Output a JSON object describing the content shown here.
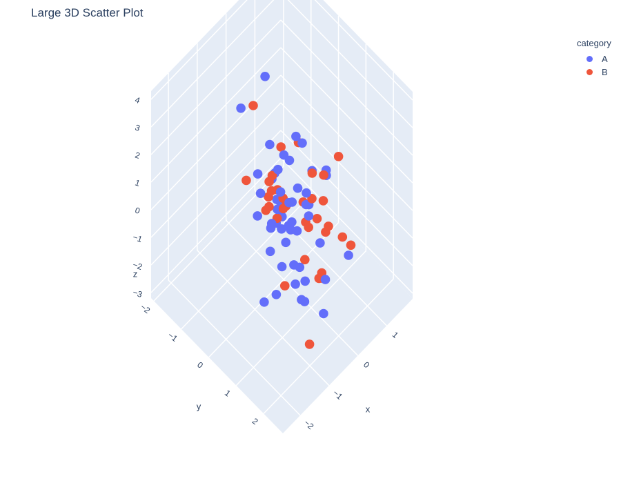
{
  "chart_data": {
    "type": "scatter",
    "subtype": "3d",
    "title": "Large 3D Scatter Plot",
    "xlabel": "x",
    "ylabel": "y",
    "zlabel": "z",
    "x_ticks": [
      "−2",
      "−1",
      "0",
      "1"
    ],
    "y_ticks": [
      "−2",
      "−1",
      "0",
      "1",
      "2"
    ],
    "z_ticks": [
      "−3",
      "−2",
      "−1",
      "0",
      "1",
      "2",
      "3",
      "4"
    ],
    "xlim": [
      -2.6,
      1.9
    ],
    "ylim": [
      -2.1,
      2.7
    ],
    "zlim": [
      -3.2,
      4.3
    ],
    "grid": true,
    "legend": {
      "title": "category",
      "placement": "top-right"
    },
    "series": [
      {
        "name": "A",
        "color": "#636efa",
        "points": [
          [
            -1.2,
            -0.3,
            4.0
          ],
          [
            0.4,
            -1.1,
            2.6
          ],
          [
            -1.8,
            1.4,
            1.2
          ],
          [
            -2.2,
            1.6,
            0.0
          ],
          [
            -1.6,
            1.6,
            2.0
          ],
          [
            -0.9,
            0.0,
            1.6
          ],
          [
            -1.2,
            1.2,
            1.6
          ],
          [
            -1.5,
            1.3,
            1.8
          ],
          [
            -1.0,
            0.8,
            1.6
          ],
          [
            -1.4,
            1.0,
            1.2
          ],
          [
            -0.6,
            0.2,
            1.3
          ],
          [
            -0.2,
            -0.3,
            1.6
          ],
          [
            -0.5,
            0.2,
            1.4
          ],
          [
            0.2,
            0.0,
            0.9
          ],
          [
            -0.9,
            0.1,
            1.0
          ],
          [
            -0.3,
            0.2,
            0.5
          ],
          [
            -0.6,
            0.4,
            0.4
          ],
          [
            -1.3,
            1.3,
            0.0
          ],
          [
            -0.9,
            1.2,
            0.8
          ],
          [
            -1.1,
            0.2,
            0.5
          ],
          [
            -0.4,
            0.6,
            -0.2
          ],
          [
            -0.1,
            0.3,
            0.0
          ],
          [
            0.2,
            0.3,
            0.2
          ],
          [
            0.3,
            0.6,
            -0.2
          ],
          [
            0.3,
            0.5,
            -0.3
          ],
          [
            -0.3,
            0.8,
            -0.3
          ],
          [
            -1.1,
            1.8,
            -0.9
          ],
          [
            -1.5,
            2.0,
            0.3
          ],
          [
            -0.6,
            1.0,
            -1.0
          ],
          [
            -1.4,
            1.2,
            -1.0
          ],
          [
            -0.5,
            0.6,
            -0.7
          ],
          [
            0.5,
            0.3,
            -0.3
          ],
          [
            0.9,
            0.6,
            0.4
          ],
          [
            1.0,
            0.5,
            0.0
          ],
          [
            0.9,
            -0.5,
            0.5
          ],
          [
            -0.1,
            0.4,
            -0.6
          ],
          [
            0.5,
            0.8,
            -1.6
          ],
          [
            -0.4,
            1.2,
            -1.6
          ],
          [
            -1.0,
            2.5,
            -0.8
          ],
          [
            -0.8,
            1.6,
            -1.5
          ],
          [
            0.3,
            1.2,
            -2.3
          ],
          [
            1.2,
            1.1,
            -2.5
          ],
          [
            1.5,
            -0.9,
            -0.8
          ],
          [
            0.6,
            0.4,
            0.5
          ],
          [
            0.2,
            0.7,
            -0.4
          ],
          [
            -0.2,
            0.0,
            1.0
          ],
          [
            0.1,
            0.2,
            -0.3
          ],
          [
            -0.8,
            0.4,
            0.1
          ],
          [
            0.1,
            -0.1,
            1.1
          ],
          [
            -0.7,
            0.6,
            1.0
          ],
          [
            -0.4,
            1.0,
            -1.3
          ]
        ]
      },
      {
        "name": "B",
        "color": "#ef553b",
        "points": [
          [
            -0.2,
            -0.9,
            2.4
          ],
          [
            -1.3,
            0.0,
            1.8
          ],
          [
            -0.9,
            0.5,
            1.5
          ],
          [
            -1.1,
            0.6,
            1.6
          ],
          [
            -0.6,
            0.1,
            1.1
          ],
          [
            -0.4,
            0.0,
            1.0
          ],
          [
            0.0,
            -0.1,
            1.5
          ],
          [
            -0.5,
            0.5,
            0.8
          ],
          [
            -0.7,
            0.2,
            0.4
          ],
          [
            -1.0,
            0.4,
            0.8
          ],
          [
            -0.3,
            0.4,
            0.2
          ],
          [
            0.7,
            -0.2,
            0.8
          ],
          [
            0.7,
            0.3,
            0.2
          ],
          [
            1.1,
            0.3,
            -0.3
          ],
          [
            -0.3,
            0.3,
            0.0
          ],
          [
            0.5,
            0.5,
            -0.3
          ],
          [
            0.3,
            0.9,
            -0.4
          ],
          [
            0.8,
            0.6,
            -0.6
          ],
          [
            0.5,
            1.0,
            -1.0
          ],
          [
            0.9,
            1.5,
            -1.4
          ],
          [
            0.8,
            1.3,
            -1.2
          ],
          [
            -0.3,
            1.6,
            -1.2
          ],
          [
            -0.2,
            1.6,
            -1.3
          ],
          [
            -1.2,
            1.3,
            -0.8
          ],
          [
            0.1,
            0.8,
            -0.6
          ],
          [
            -0.6,
            1.4,
            -0.4
          ],
          [
            0.0,
            0.8,
            -0.3
          ],
          [
            1.9,
            0.0,
            -0.8
          ],
          [
            -0.5,
            0.3,
            0.9
          ],
          [
            -0.8,
            0.6,
            0.5
          ],
          [
            0.2,
            0.5,
            -0.1
          ],
          [
            -0.3,
            1.7,
            -0.9
          ],
          [
            -1.2,
            2.2,
            -2.0
          ],
          [
            0.6,
            1.0,
            -0.9
          ]
        ]
      }
    ]
  }
}
